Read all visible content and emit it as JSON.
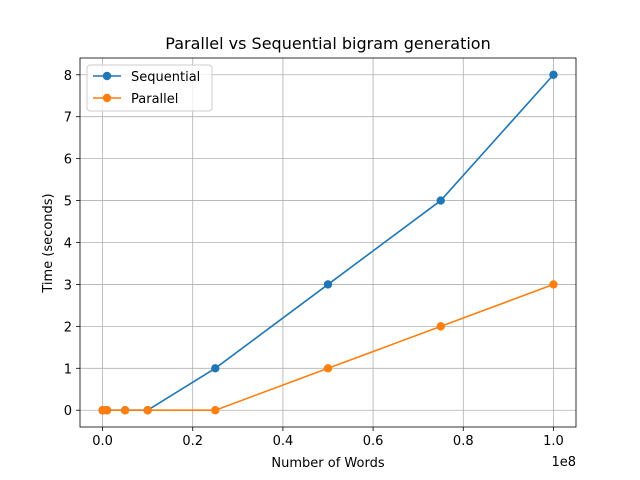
{
  "chart_data": {
    "type": "line",
    "title": "Parallel vs Sequential bigram generation",
    "xlabel": "Number of Words",
    "ylabel": "Time (seconds)",
    "x_offset_label": "1e8",
    "xlim": [
      -0.05,
      1.05
    ],
    "ylim": [
      -0.4,
      8.4
    ],
    "x_ticks": [
      0.0,
      0.2,
      0.4,
      0.6,
      0.8,
      1.0
    ],
    "x_tick_labels": [
      "0.0",
      "0.2",
      "0.4",
      "0.6",
      "0.8",
      "1.0"
    ],
    "y_ticks": [
      0,
      1,
      2,
      3,
      4,
      5,
      6,
      7,
      8
    ],
    "y_tick_labels": [
      "0",
      "1",
      "2",
      "3",
      "4",
      "5",
      "6",
      "7",
      "8"
    ],
    "grid": true,
    "legend_position": "upper-left",
    "x": [
      0.0,
      0.001,
      0.01,
      0.05,
      0.1,
      0.25,
      0.5,
      0.75,
      1.0
    ],
    "series": [
      {
        "name": "Sequential",
        "color": "#1f77b4",
        "marker": "circle",
        "values": [
          0,
          0,
          0,
          0,
          0,
          1,
          3,
          5,
          8
        ]
      },
      {
        "name": "Parallel",
        "color": "#ff7f0e",
        "marker": "circle",
        "values": [
          0,
          0,
          0,
          0,
          0,
          0,
          1,
          2,
          3
        ]
      }
    ]
  }
}
